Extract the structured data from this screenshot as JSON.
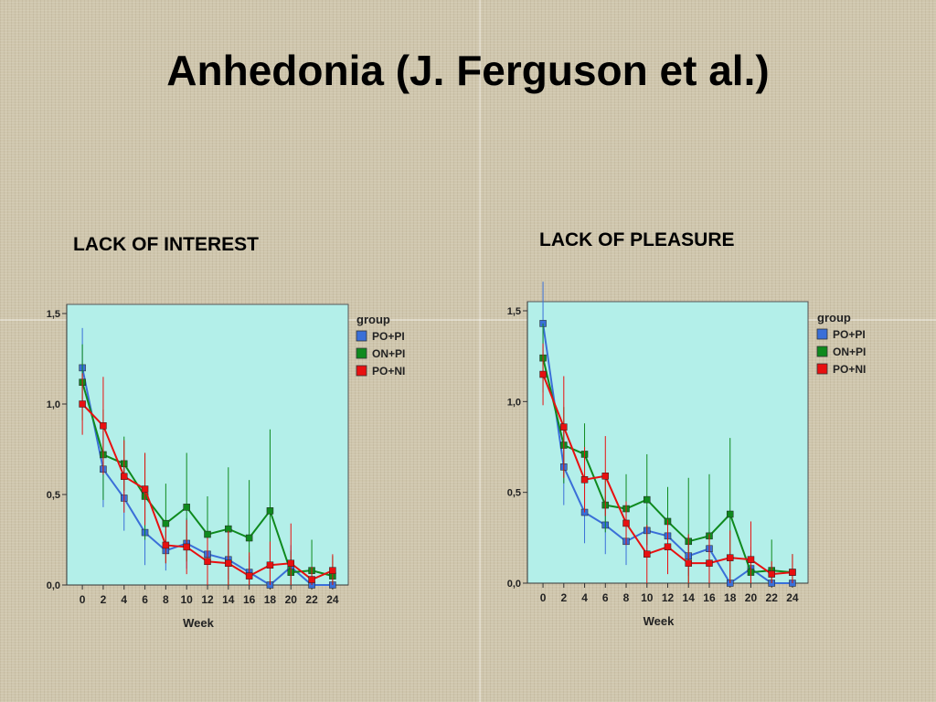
{
  "slide": {
    "title": "Anhedonia (J. Ferguson et al.)"
  },
  "colors": {
    "plot_bg": "#b3efe9",
    "po_pi": "#3a6fd8",
    "on_pi": "#0f8a1e",
    "po_ni": "#e81010"
  },
  "chart_data": [
    {
      "type": "line",
      "title": "LACK OF INTEREST",
      "xlabel": "Week",
      "ylabel": "",
      "x": [
        0,
        2,
        4,
        6,
        8,
        10,
        12,
        14,
        16,
        18,
        20,
        22,
        24
      ],
      "xlim": [
        -1.5,
        25.5
      ],
      "ylim": [
        0,
        1.5
      ],
      "y_ticks": [
        {
          "v": 0,
          "label": "0,0"
        },
        {
          "v": 0.5,
          "label": "0,5"
        },
        {
          "v": 1.0,
          "label": "1,0"
        },
        {
          "v": 1.5,
          "label": "1,5"
        }
      ],
      "error_bars": true,
      "grid": false,
      "legend": {
        "title": "group",
        "position": "right"
      },
      "series": [
        {
          "name": "PO+PI",
          "color": "#3a6fd8",
          "values": [
            1.2,
            0.64,
            0.48,
            0.29,
            0.19,
            0.23,
            0.17,
            0.14,
            0.07,
            0.0,
            0.1,
            0.0,
            0.0
          ],
          "upper": [
            1.42,
            0.85,
            0.66,
            0.47,
            0.3,
            0.37,
            0.3,
            0.25,
            0.16,
            0.02,
            0.22,
            0.02,
            0.02
          ],
          "lower": [
            0.98,
            0.43,
            0.3,
            0.11,
            0.08,
            0.09,
            0.04,
            0.03,
            0.0,
            0.0,
            0.0,
            0.0,
            0.0
          ]
        },
        {
          "name": "ON+PI",
          "color": "#0f8a1e",
          "values": [
            1.12,
            0.72,
            0.67,
            0.49,
            0.34,
            0.43,
            0.28,
            0.31,
            0.26,
            0.41,
            0.07,
            0.08,
            0.05
          ],
          "upper": [
            1.33,
            0.97,
            0.82,
            0.73,
            0.56,
            0.73,
            0.49,
            0.65,
            0.58,
            0.86,
            0.19,
            0.25,
            0.16
          ],
          "lower": [
            0.91,
            0.47,
            0.52,
            0.25,
            0.12,
            0.13,
            0.07,
            0.0,
            0.0,
            0.0,
            0.0,
            0.0,
            0.0
          ]
        },
        {
          "name": "PO+NI",
          "color": "#e81010",
          "values": [
            1.0,
            0.88,
            0.6,
            0.53,
            0.22,
            0.21,
            0.13,
            0.12,
            0.05,
            0.11,
            0.12,
            0.03,
            0.08
          ],
          "upper": [
            1.17,
            1.15,
            0.8,
            0.73,
            0.32,
            0.36,
            0.26,
            0.3,
            0.18,
            0.24,
            0.34,
            0.1,
            0.17
          ],
          "lower": [
            0.83,
            0.61,
            0.4,
            0.33,
            0.12,
            0.06,
            0.0,
            0.0,
            0.0,
            0.0,
            0.0,
            0.0,
            0.0
          ]
        }
      ]
    },
    {
      "type": "line",
      "title": "LACK OF PLEASURE",
      "xlabel": "Week",
      "ylabel": "",
      "x": [
        0,
        2,
        4,
        6,
        8,
        10,
        12,
        14,
        16,
        18,
        20,
        22,
        24
      ],
      "xlim": [
        -1.5,
        25.5
      ],
      "ylim": [
        0,
        1.5
      ],
      "y_ticks": [
        {
          "v": 0,
          "label": "0,0"
        },
        {
          "v": 0.5,
          "label": "0,5"
        },
        {
          "v": 1.0,
          "label": "1,0"
        },
        {
          "v": 1.5,
          "label": "1,5"
        }
      ],
      "error_bars": true,
      "grid": false,
      "legend": {
        "title": "group",
        "position": "right"
      },
      "series": [
        {
          "name": "PO+PI",
          "color": "#3a6fd8",
          "values": [
            1.43,
            0.64,
            0.39,
            0.32,
            0.23,
            0.29,
            0.26,
            0.15,
            0.19,
            0.0,
            0.08,
            0.0,
            0.0
          ],
          "upper": [
            1.66,
            0.85,
            0.56,
            0.48,
            0.36,
            0.42,
            0.38,
            0.26,
            0.3,
            0.02,
            0.2,
            0.02,
            0.02
          ],
          "lower": [
            1.2,
            0.43,
            0.22,
            0.16,
            0.1,
            0.16,
            0.14,
            0.04,
            0.08,
            0.0,
            0.0,
            0.0,
            0.0
          ]
        },
        {
          "name": "ON+PI",
          "color": "#0f8a1e",
          "values": [
            1.24,
            0.76,
            0.71,
            0.43,
            0.41,
            0.46,
            0.34,
            0.23,
            0.26,
            0.38,
            0.06,
            0.07,
            0.06
          ],
          "upper": [
            1.43,
            0.97,
            0.88,
            0.58,
            0.6,
            0.71,
            0.53,
            0.58,
            0.6,
            0.8,
            0.16,
            0.24,
            0.16
          ],
          "lower": [
            1.05,
            0.55,
            0.54,
            0.28,
            0.22,
            0.21,
            0.15,
            0.0,
            0.0,
            0.0,
            0.0,
            0.0,
            0.0
          ]
        },
        {
          "name": "PO+NI",
          "color": "#e81010",
          "values": [
            1.15,
            0.86,
            0.57,
            0.59,
            0.33,
            0.16,
            0.2,
            0.11,
            0.11,
            0.14,
            0.13,
            0.05,
            0.06
          ],
          "upper": [
            1.32,
            1.14,
            0.75,
            0.81,
            0.45,
            0.32,
            0.35,
            0.27,
            0.27,
            0.29,
            0.34,
            0.12,
            0.16
          ],
          "lower": [
            0.98,
            0.58,
            0.39,
            0.37,
            0.21,
            0.0,
            0.05,
            0.0,
            0.0,
            0.0,
            0.0,
            0.0,
            0.0
          ]
        }
      ]
    }
  ]
}
